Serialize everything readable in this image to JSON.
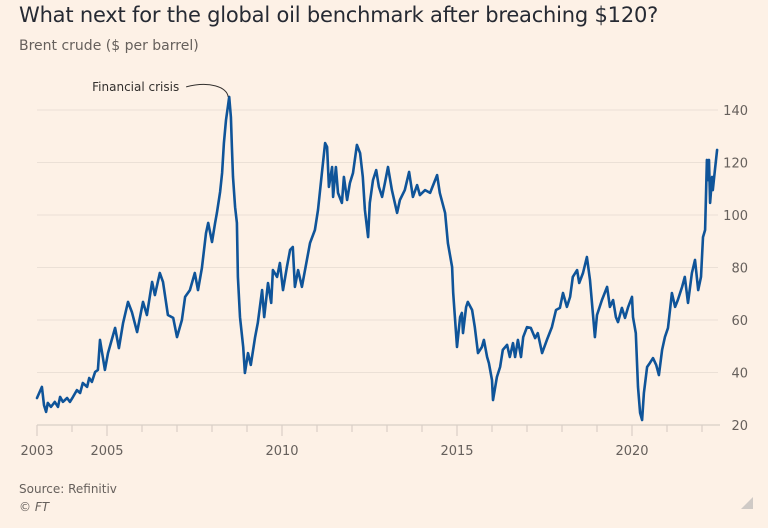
{
  "header": {
    "title": "What next for the global oil benchmark after breaching $120?",
    "subtitle": "Brent crude ($ per barrel)"
  },
  "footer": {
    "source": "Source: Refinitiv",
    "copyright": "© FT"
  },
  "colors": {
    "background": "#fdf1e6",
    "series": "#0f5499"
  },
  "chart_data": {
    "type": "line",
    "title": "What next for the global oil benchmark after breaching $120?",
    "subtitle": "Brent crude ($ per barrel)",
    "xlabel": "",
    "ylabel": "Brent crude ($ per barrel)",
    "xlim": [
      2003,
      2022.5
    ],
    "ylim": [
      20,
      145
    ],
    "y_ticks": [
      20,
      40,
      60,
      80,
      100,
      120,
      140
    ],
    "y_axis_position": "right",
    "x_ticks_minor": [
      2003,
      2004,
      2005,
      2006,
      2007,
      2008,
      2009,
      2010,
      2011,
      2012,
      2013,
      2014,
      2015,
      2016,
      2017,
      2018,
      2019,
      2020,
      2021,
      2022
    ],
    "x_tick_labels": [
      "2003",
      "2005",
      "2010",
      "2015",
      "2020"
    ],
    "x_tick_label_years": [
      2003,
      2005,
      2010,
      2015,
      2020
    ],
    "grid": true,
    "legend": "none",
    "annotations": [
      {
        "text": "Financial crisis",
        "x": 2008.49,
        "y": 145
      }
    ],
    "series": [
      {
        "name": "Brent crude",
        "x": [
          2003.0,
          2003.14,
          2003.2,
          2003.26,
          2003.31,
          2003.4,
          2003.51,
          2003.6,
          2003.66,
          2003.74,
          2003.86,
          2003.94,
          2004.03,
          2004.14,
          2004.23,
          2004.31,
          2004.43,
          2004.49,
          2004.57,
          2004.66,
          2004.74,
          2004.8,
          2004.94,
          2005.03,
          2005.23,
          2005.34,
          2005.46,
          2005.6,
          2005.71,
          2005.86,
          2006.03,
          2006.14,
          2006.29,
          2006.37,
          2006.51,
          2006.6,
          2006.74,
          2006.89,
          2007.0,
          2007.14,
          2007.23,
          2007.37,
          2007.51,
          2007.6,
          2007.71,
          2007.83,
          2007.89,
          2008.0,
          2008.09,
          2008.14,
          2008.23,
          2008.29,
          2008.34,
          2008.4,
          2008.46,
          2008.49,
          2008.54,
          2008.57,
          2008.6,
          2008.66,
          2008.71,
          2008.74,
          2008.8,
          2008.89,
          2008.94,
          2009.03,
          2009.11,
          2009.23,
          2009.31,
          2009.43,
          2009.49,
          2009.6,
          2009.69,
          2009.74,
          2009.86,
          2009.94,
          2010.03,
          2010.14,
          2010.23,
          2010.31,
          2010.37,
          2010.46,
          2010.57,
          2010.71,
          2010.8,
          2010.94,
          2011.03,
          2011.14,
          2011.23,
          2011.29,
          2011.34,
          2011.43,
          2011.46,
          2011.54,
          2011.6,
          2011.71,
          2011.77,
          2011.86,
          2011.94,
          2012.03,
          2012.14,
          2012.23,
          2012.31,
          2012.37,
          2012.46,
          2012.51,
          2012.6,
          2012.69,
          2012.77,
          2012.86,
          2012.94,
          2013.03,
          2013.14,
          2013.29,
          2013.37,
          2013.51,
          2013.63,
          2013.74,
          2013.86,
          2013.94,
          2014.09,
          2014.23,
          2014.43,
          2014.51,
          2014.66,
          2014.74,
          2014.86,
          2014.89,
          2014.94,
          2015.0,
          2015.09,
          2015.14,
          2015.17,
          2015.26,
          2015.31,
          2015.43,
          2015.51,
          2015.6,
          2015.71,
          2015.77,
          2015.86,
          2015.91,
          2016.0,
          2016.03,
          2016.14,
          2016.23,
          2016.31,
          2016.43,
          2016.51,
          2016.6,
          2016.66,
          2016.74,
          2016.83,
          2016.89,
          2017.0,
          2017.11,
          2017.23,
          2017.31,
          2017.43,
          2017.57,
          2017.71,
          2017.83,
          2017.94,
          2018.03,
          2018.14,
          2018.23,
          2018.31,
          2018.43,
          2018.49,
          2018.6,
          2018.71,
          2018.8,
          2018.89,
          2018.94,
          2019.0,
          2019.14,
          2019.29,
          2019.37,
          2019.46,
          2019.54,
          2019.6,
          2019.71,
          2019.8,
          2019.89,
          2020.0,
          2020.03,
          2020.11,
          2020.17,
          2020.23,
          2020.29,
          2020.34,
          2020.43,
          2020.51,
          2020.6,
          2020.69,
          2020.77,
          2020.86,
          2020.94,
          2021.03,
          2021.14,
          2021.23,
          2021.31,
          2021.43,
          2021.51,
          2021.6,
          2021.71,
          2021.8,
          2021.89,
          2021.97,
          2022.03,
          2022.09,
          2022.14,
          2022.17,
          2022.2,
          2022.23,
          2022.29,
          2022.31,
          2022.37,
          2022.43
        ],
        "y": [
          30.3,
          34.5,
          27.6,
          25.0,
          28.4,
          26.9,
          28.8,
          26.9,
          30.7,
          28.8,
          30.3,
          28.8,
          30.7,
          33.3,
          32.2,
          36.0,
          34.5,
          37.9,
          36.4,
          40.2,
          41.0,
          52.4,
          41.0,
          47.4,
          57.0,
          49.3,
          58.9,
          66.9,
          63.0,
          55.4,
          66.9,
          61.9,
          74.5,
          69.5,
          77.9,
          74.5,
          61.9,
          60.8,
          53.5,
          60.0,
          68.8,
          71.4,
          77.9,
          71.4,
          79.8,
          93.1,
          97.0,
          89.7,
          97.0,
          100.8,
          108.8,
          116.0,
          127.4,
          136.2,
          141.9,
          145.0,
          137.3,
          125.9,
          114.5,
          103.0,
          97.0,
          76.4,
          61.1,
          49.7,
          39.8,
          47.4,
          42.9,
          53.5,
          58.9,
          71.4,
          61.1,
          74.1,
          66.5,
          79.0,
          76.4,
          81.7,
          71.4,
          80.2,
          86.7,
          87.8,
          72.6,
          79.0,
          72.6,
          82.9,
          89.3,
          94.3,
          101.9,
          116.0,
          127.4,
          125.9,
          110.7,
          118.3,
          106.9,
          118.3,
          108.4,
          104.6,
          114.5,
          105.7,
          112.2,
          116.0,
          126.7,
          123.6,
          114.5,
          101.9,
          91.6,
          104.6,
          113.3,
          117.1,
          110.7,
          106.9,
          112.2,
          118.3,
          109.5,
          100.8,
          105.7,
          109.5,
          116.4,
          106.9,
          111.4,
          107.6,
          109.5,
          108.4,
          115.2,
          108.4,
          100.8,
          89.3,
          80.2,
          70.3,
          61.1,
          49.7,
          61.1,
          62.7,
          55.0,
          64.9,
          66.9,
          63.8,
          57.3,
          47.4,
          49.7,
          52.4,
          45.9,
          43.6,
          37.1,
          29.5,
          38.3,
          42.1,
          48.6,
          50.5,
          45.9,
          51.2,
          45.9,
          52.4,
          45.9,
          53.5,
          57.3,
          57.0,
          53.1,
          55.0,
          47.4,
          52.4,
          57.3,
          63.8,
          64.6,
          70.3,
          65.0,
          68.8,
          76.4,
          79.0,
          74.1,
          77.9,
          84.0,
          75.2,
          61.1,
          53.5,
          61.9,
          67.6,
          72.6,
          65.0,
          67.6,
          61.1,
          59.2,
          64.6,
          60.8,
          65.0,
          68.8,
          61.1,
          55.0,
          34.5,
          24.6,
          21.9,
          32.2,
          42.1,
          43.6,
          45.5,
          42.9,
          39.0,
          48.6,
          53.5,
          57.0,
          70.3,
          65.0,
          67.6,
          72.6,
          76.4,
          66.5,
          77.9,
          82.9,
          71.4,
          76.4,
          91.6,
          94.3,
          121.0,
          113.3,
          121.0,
          104.6,
          114.5,
          109.5,
          117.1,
          124.8
        ]
      }
    ]
  }
}
